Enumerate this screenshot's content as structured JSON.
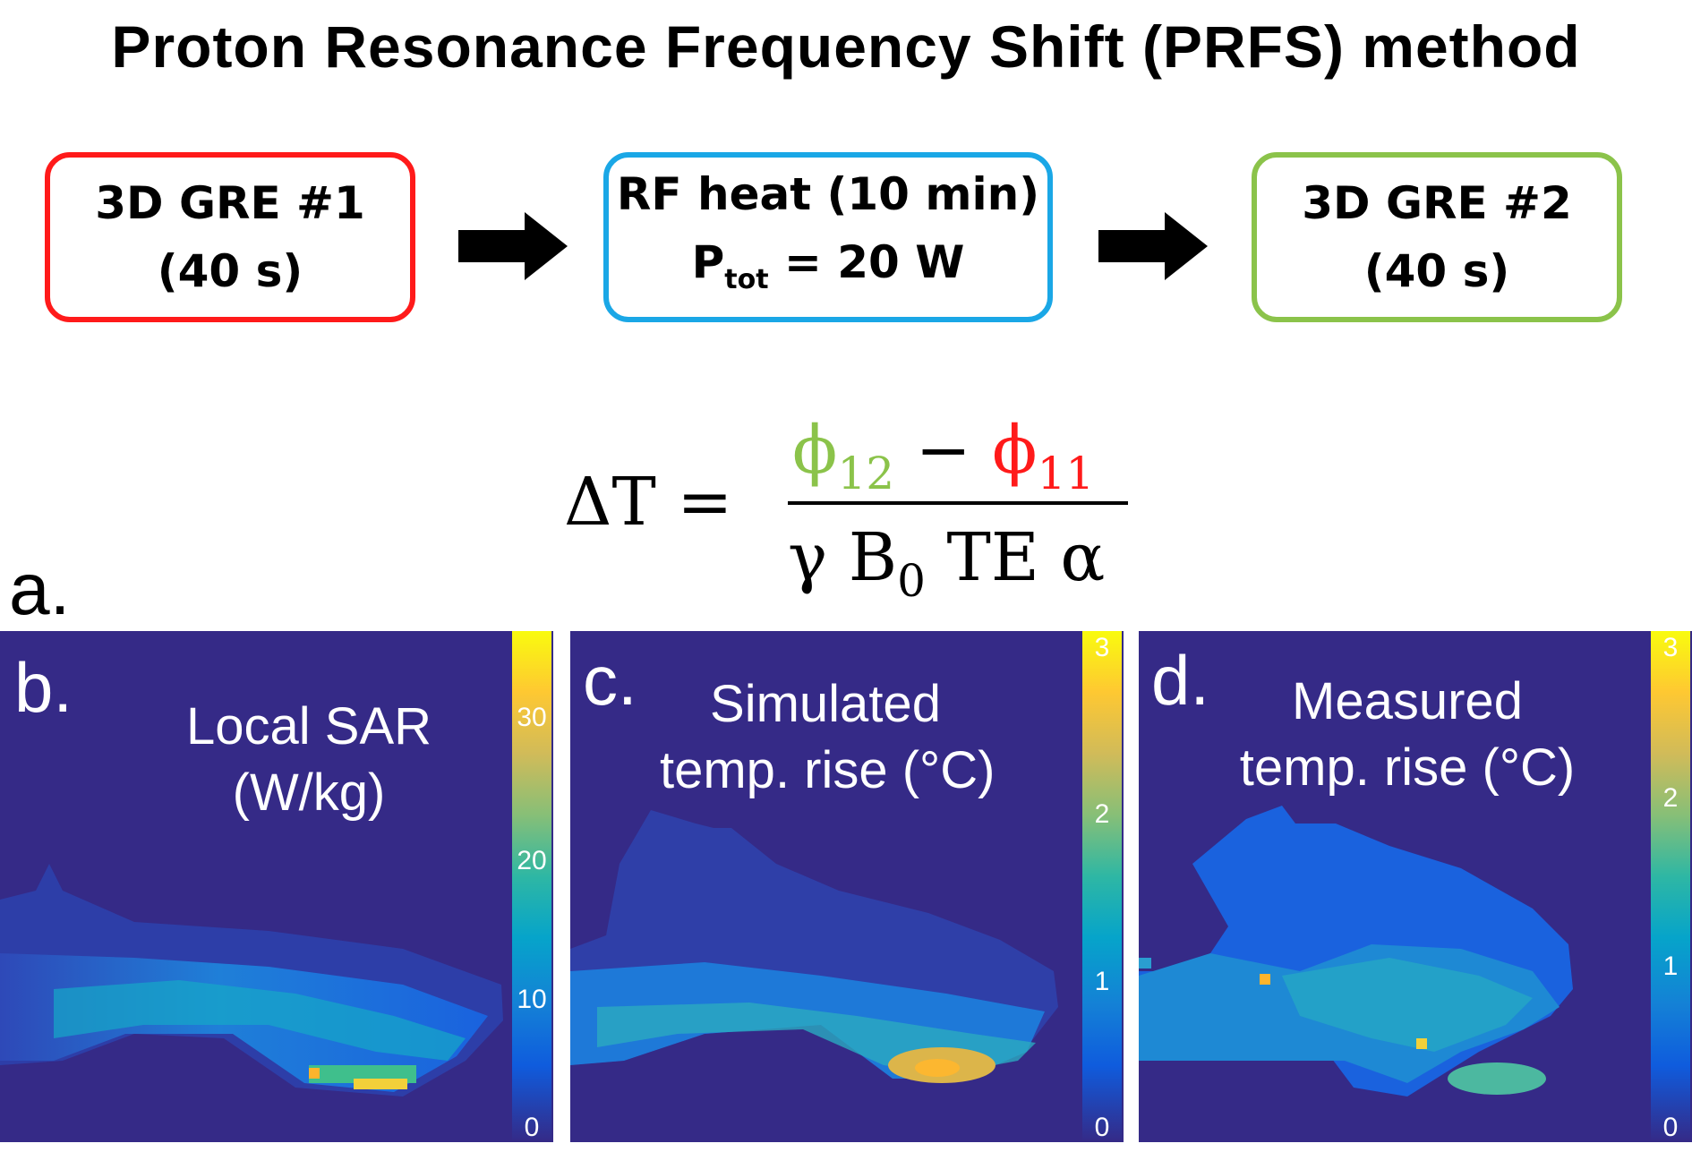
{
  "title": "Proton Resonance Frequency Shift (PRFS) method",
  "colors": {
    "box1": "#ff1a1a",
    "box2": "#1aa7e6",
    "box3": "#8bc34a",
    "phi12": "#8bc34a",
    "phi11": "#ff1a1a",
    "panel_bg": "#352a87"
  },
  "steps": [
    {
      "line1": "3D GRE #1",
      "line2": "(40 s)"
    },
    {
      "line1": "RF heat (10 min)",
      "line2_prefix": "P",
      "line2_sub": "tot",
      "line2_suffix": " = 20 W"
    },
    {
      "line1": "3D GRE #2",
      "line2": "(40 s)"
    }
  ],
  "equation": {
    "lhs": "ΔT =",
    "phi": "ϕ",
    "phi12_sub": "12",
    "minus": "−",
    "phi11_sub": "11",
    "den_pre": "γ B",
    "den_sub": "0",
    "den_post": " TE α"
  },
  "panel_a_label": "a.",
  "panels": [
    {
      "letter": "b.",
      "title_l1": "Local SAR",
      "title_l2": "(W/kg)",
      "ticks": [
        "30",
        "20",
        "10",
        "0"
      ]
    },
    {
      "letter": "c.",
      "title_l1": "Simulated",
      "title_l2": "temp. rise (°C)",
      "ticks": [
        "3",
        "2",
        "1",
        "0"
      ]
    },
    {
      "letter": "d.",
      "title_l1": "Measured",
      "title_l2": "temp. rise (°C)",
      "ticks": [
        "3",
        "2",
        "1",
        "0"
      ]
    }
  ]
}
